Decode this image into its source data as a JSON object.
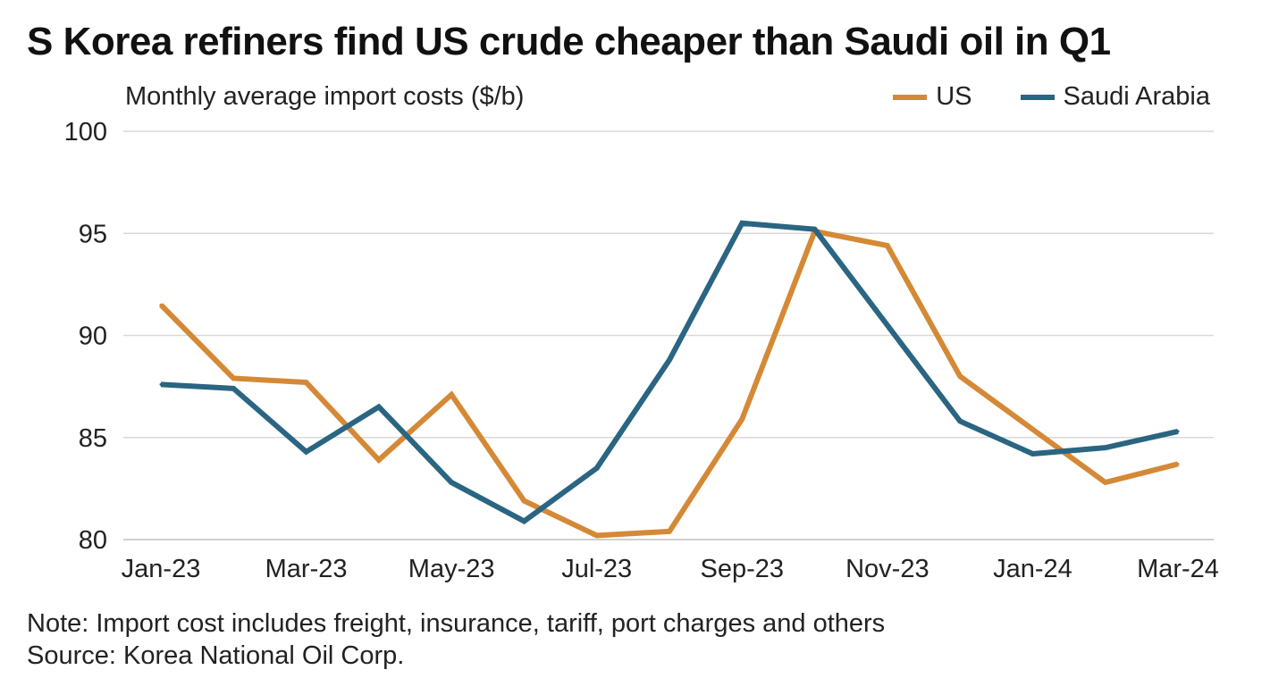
{
  "chart_data": {
    "type": "line",
    "title": "S Korea refiners find US crude cheaper than Saudi oil in Q1",
    "subtitle": "Monthly average import costs ($/b)",
    "xlabel": "",
    "ylabel": "Monthly average import costs ($/b)",
    "categories": [
      "Jan-23",
      "Feb-23",
      "Mar-23",
      "Apr-23",
      "May-23",
      "Jun-23",
      "Jul-23",
      "Aug-23",
      "Sep-23",
      "Oct-23",
      "Nov-23",
      "Dec-23",
      "Jan-24",
      "Feb-24",
      "Mar-24"
    ],
    "x_tick_labels": [
      "Jan-23",
      "Mar-23",
      "May-23",
      "Jul-23",
      "Sep-23",
      "Nov-23",
      "Jan-24",
      "Mar-24"
    ],
    "y_ticks": [
      80,
      85,
      90,
      95,
      100
    ],
    "ylim": [
      80,
      100
    ],
    "grid": true,
    "legend_position": "top-right",
    "series": [
      {
        "name": "US",
        "color": "#D58936",
        "values": [
          91.5,
          87.9,
          87.7,
          83.9,
          87.1,
          81.9,
          80.2,
          80.4,
          85.9,
          95.1,
          94.4,
          88.0,
          85.4,
          82.8,
          83.7
        ]
      },
      {
        "name": "Saudi Arabia",
        "color": "#2A6582",
        "values": [
          87.6,
          87.4,
          84.3,
          86.5,
          82.8,
          80.9,
          83.5,
          88.8,
          95.5,
          95.2,
          90.5,
          85.8,
          84.2,
          84.5,
          85.3
        ]
      }
    ]
  },
  "notes": {
    "note": "Note: Import cost includes freight, insurance, tariff, port charges and others",
    "source": "Source: Korea National Oil Corp."
  },
  "colors": {
    "gridline": "#d9d9d9",
    "axis_line": "#cfcfcf"
  }
}
